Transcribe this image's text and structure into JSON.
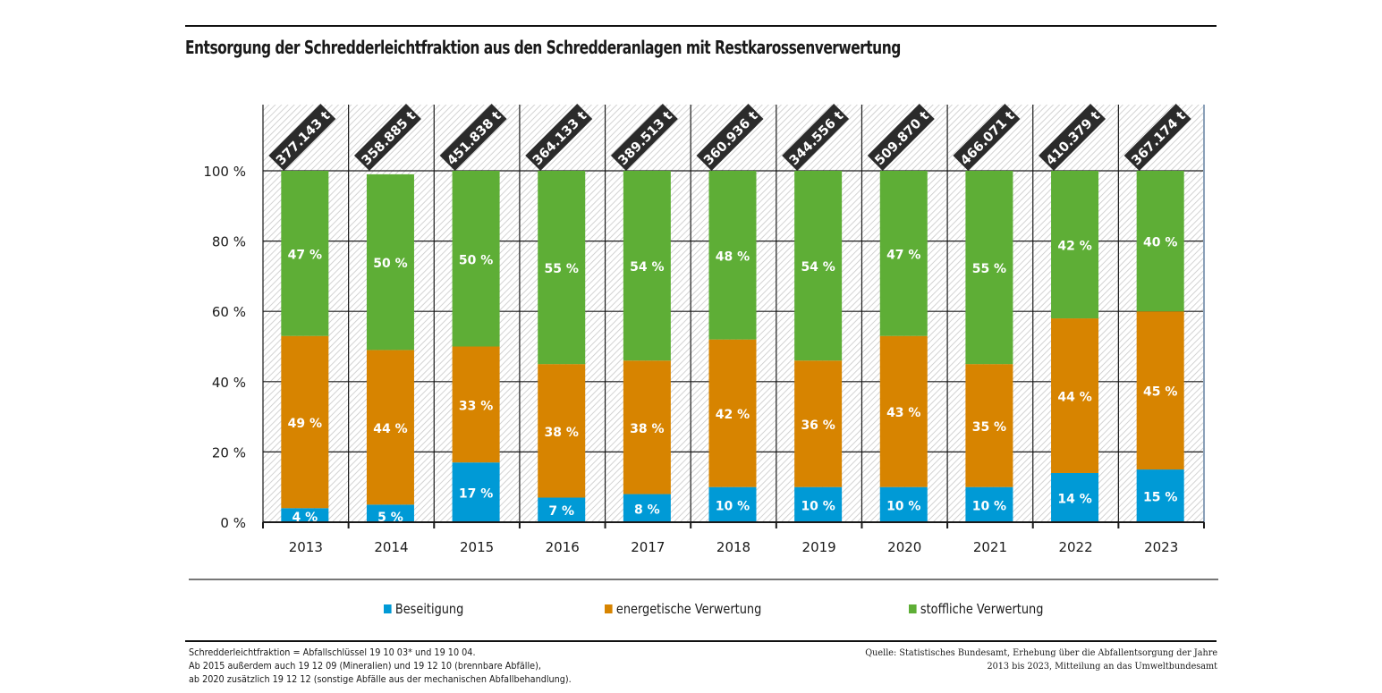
{
  "chart_data": {
    "type": "bar",
    "stacked": true,
    "title": "Entsorgung der Schredderleichtfraktion aus den Schredderanlagen mit Restkarossenverwertung",
    "xlabel": "",
    "ylabel": "",
    "ylim": [
      0,
      100
    ],
    "yticks": [
      0,
      20,
      40,
      60,
      80,
      100
    ],
    "ytick_labels": [
      "0 %",
      "20 %",
      "40 %",
      "60 %",
      "80 %",
      "100 %"
    ],
    "grid": true,
    "legend_position": "bottom",
    "categories": [
      "2013",
      "2014",
      "2015",
      "2016",
      "2017",
      "2018",
      "2019",
      "2020",
      "2021",
      "2022",
      "2023"
    ],
    "totals": [
      "377.143 t",
      "358.885 t",
      "451.838 t",
      "364.133 t",
      "389.513 t",
      "360.936 t",
      "344.556 t",
      "509.870 t",
      "466.071 t",
      "410.379 t",
      "367.174 t"
    ],
    "series": [
      {
        "name": "Beseitigung",
        "color": "#009ad6",
        "values": [
          4,
          5,
          17,
          7,
          8,
          10,
          10,
          10,
          10,
          14,
          15
        ],
        "labels": [
          "4 %",
          "5 %",
          "17 %",
          "7 %",
          "8 %",
          "10 %",
          "10 %",
          "10 %",
          "10 %",
          "14 %",
          "15 %"
        ]
      },
      {
        "name": "energetische Verwertung",
        "color": "#d78400",
        "values": [
          49,
          44,
          33,
          38,
          38,
          42,
          36,
          43,
          35,
          44,
          45
        ],
        "labels": [
          "49 %",
          "44 %",
          "33 %",
          "38 %",
          "38 %",
          "42 %",
          "36 %",
          "43 %",
          "35 %",
          "44 %",
          "45 %"
        ]
      },
      {
        "name": "stoffliche Verwertung",
        "color": "#5eae36",
        "values": [
          47,
          50,
          50,
          55,
          54,
          48,
          54,
          47,
          55,
          42,
          40
        ],
        "labels": [
          "47 %",
          "50 %",
          "50 %",
          "55 %",
          "54 %",
          "48 %",
          "54 %",
          "47 %",
          "55 %",
          "42 %",
          "40 %"
        ]
      }
    ]
  },
  "footnote": {
    "lines": [
      "Schredderleichtfraktion = Abfallschlüssel 19 10 03* und 19 10 04.",
      "Ab 2015 außerdem auch 19 12 09 (Mineralien) und 19 12 10 (brennbare Abfälle),",
      "ab 2020 zusätzlich 19 12 12 (sonstige Abfälle aus der mechanischen Abfallbehandlung)."
    ]
  },
  "source": {
    "lines": [
      "Quelle: Statistisches Bundesamt, Erhebung über die Abfallentsorgung der Jahre",
      "2013 bis 2023, Mitteilung an das Umweltbundesamt"
    ]
  },
  "colors": {
    "total_badge": "#2b2b2b",
    "grid": "#1a1a1a",
    "hatch": "#c8c8c8"
  }
}
